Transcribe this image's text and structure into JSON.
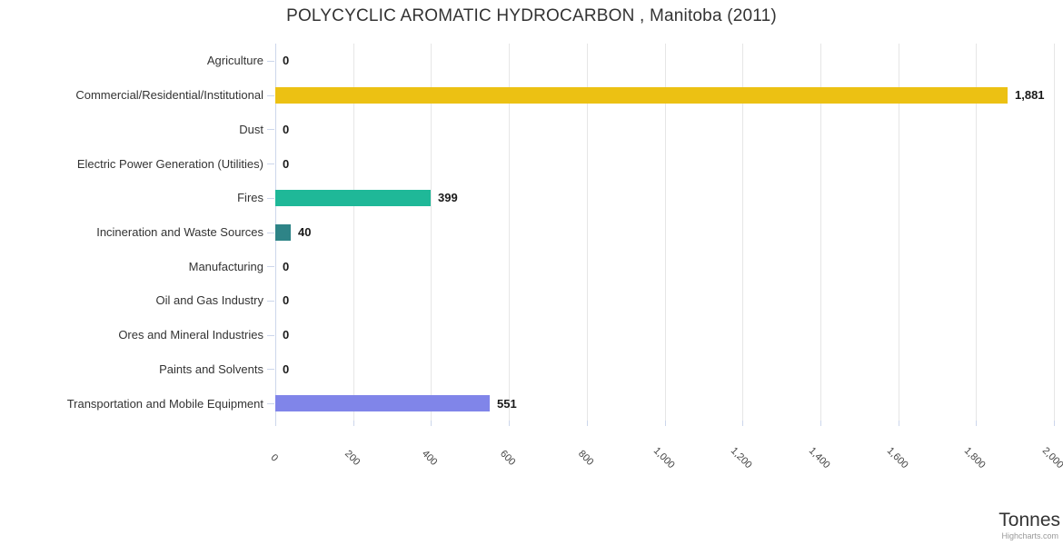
{
  "chart_data": {
    "type": "bar",
    "title": "POLYCYCLIC AROMATIC HYDROCARBON , Manitoba (2011)",
    "xlabel": "Tonnes",
    "ylabel": "",
    "xlim": [
      0,
      2000
    ],
    "grid": true,
    "legend": false,
    "categories": [
      "Agriculture",
      "Commercial/Residential/Institutional",
      "Dust",
      "Electric Power Generation (Utilities)",
      "Fires",
      "Incineration and Waste Sources",
      "Manufacturing",
      "Oil and Gas Industry",
      "Ores and Mineral Industries",
      "Paints and Solvents",
      "Transportation and Mobile Equipment"
    ],
    "values": [
      0,
      1881,
      0,
      0,
      399,
      40,
      0,
      0,
      0,
      0,
      551
    ],
    "value_labels": [
      "0",
      "1,881",
      "0",
      "0",
      "399",
      "40",
      "0",
      "0",
      "0",
      "0",
      "551"
    ],
    "bar_colors": [
      null,
      "#ecc113",
      null,
      null,
      "#1fb898",
      "#2e8487",
      null,
      null,
      null,
      null,
      "#8085e9"
    ],
    "axis": {
      "tick_values": [
        0,
        200,
        400,
        600,
        800,
        1000,
        1200,
        1400,
        1600,
        1800,
        2000
      ],
      "tick_labels": [
        "0",
        "200",
        "400",
        "600",
        "800",
        "1,000",
        "1,200",
        "1,400",
        "1,600",
        "1,800",
        "2,000"
      ],
      "gridline_color": "#e6e6e6",
      "axis_line_color": "#ccd6eb",
      "label_color": "#444444"
    },
    "credit": "Highcharts.com",
    "theme": {
      "background": "#ffffff",
      "title_color": "#333333",
      "category_label_color": "#333333",
      "data_label_color": "#1a1a1a"
    }
  }
}
